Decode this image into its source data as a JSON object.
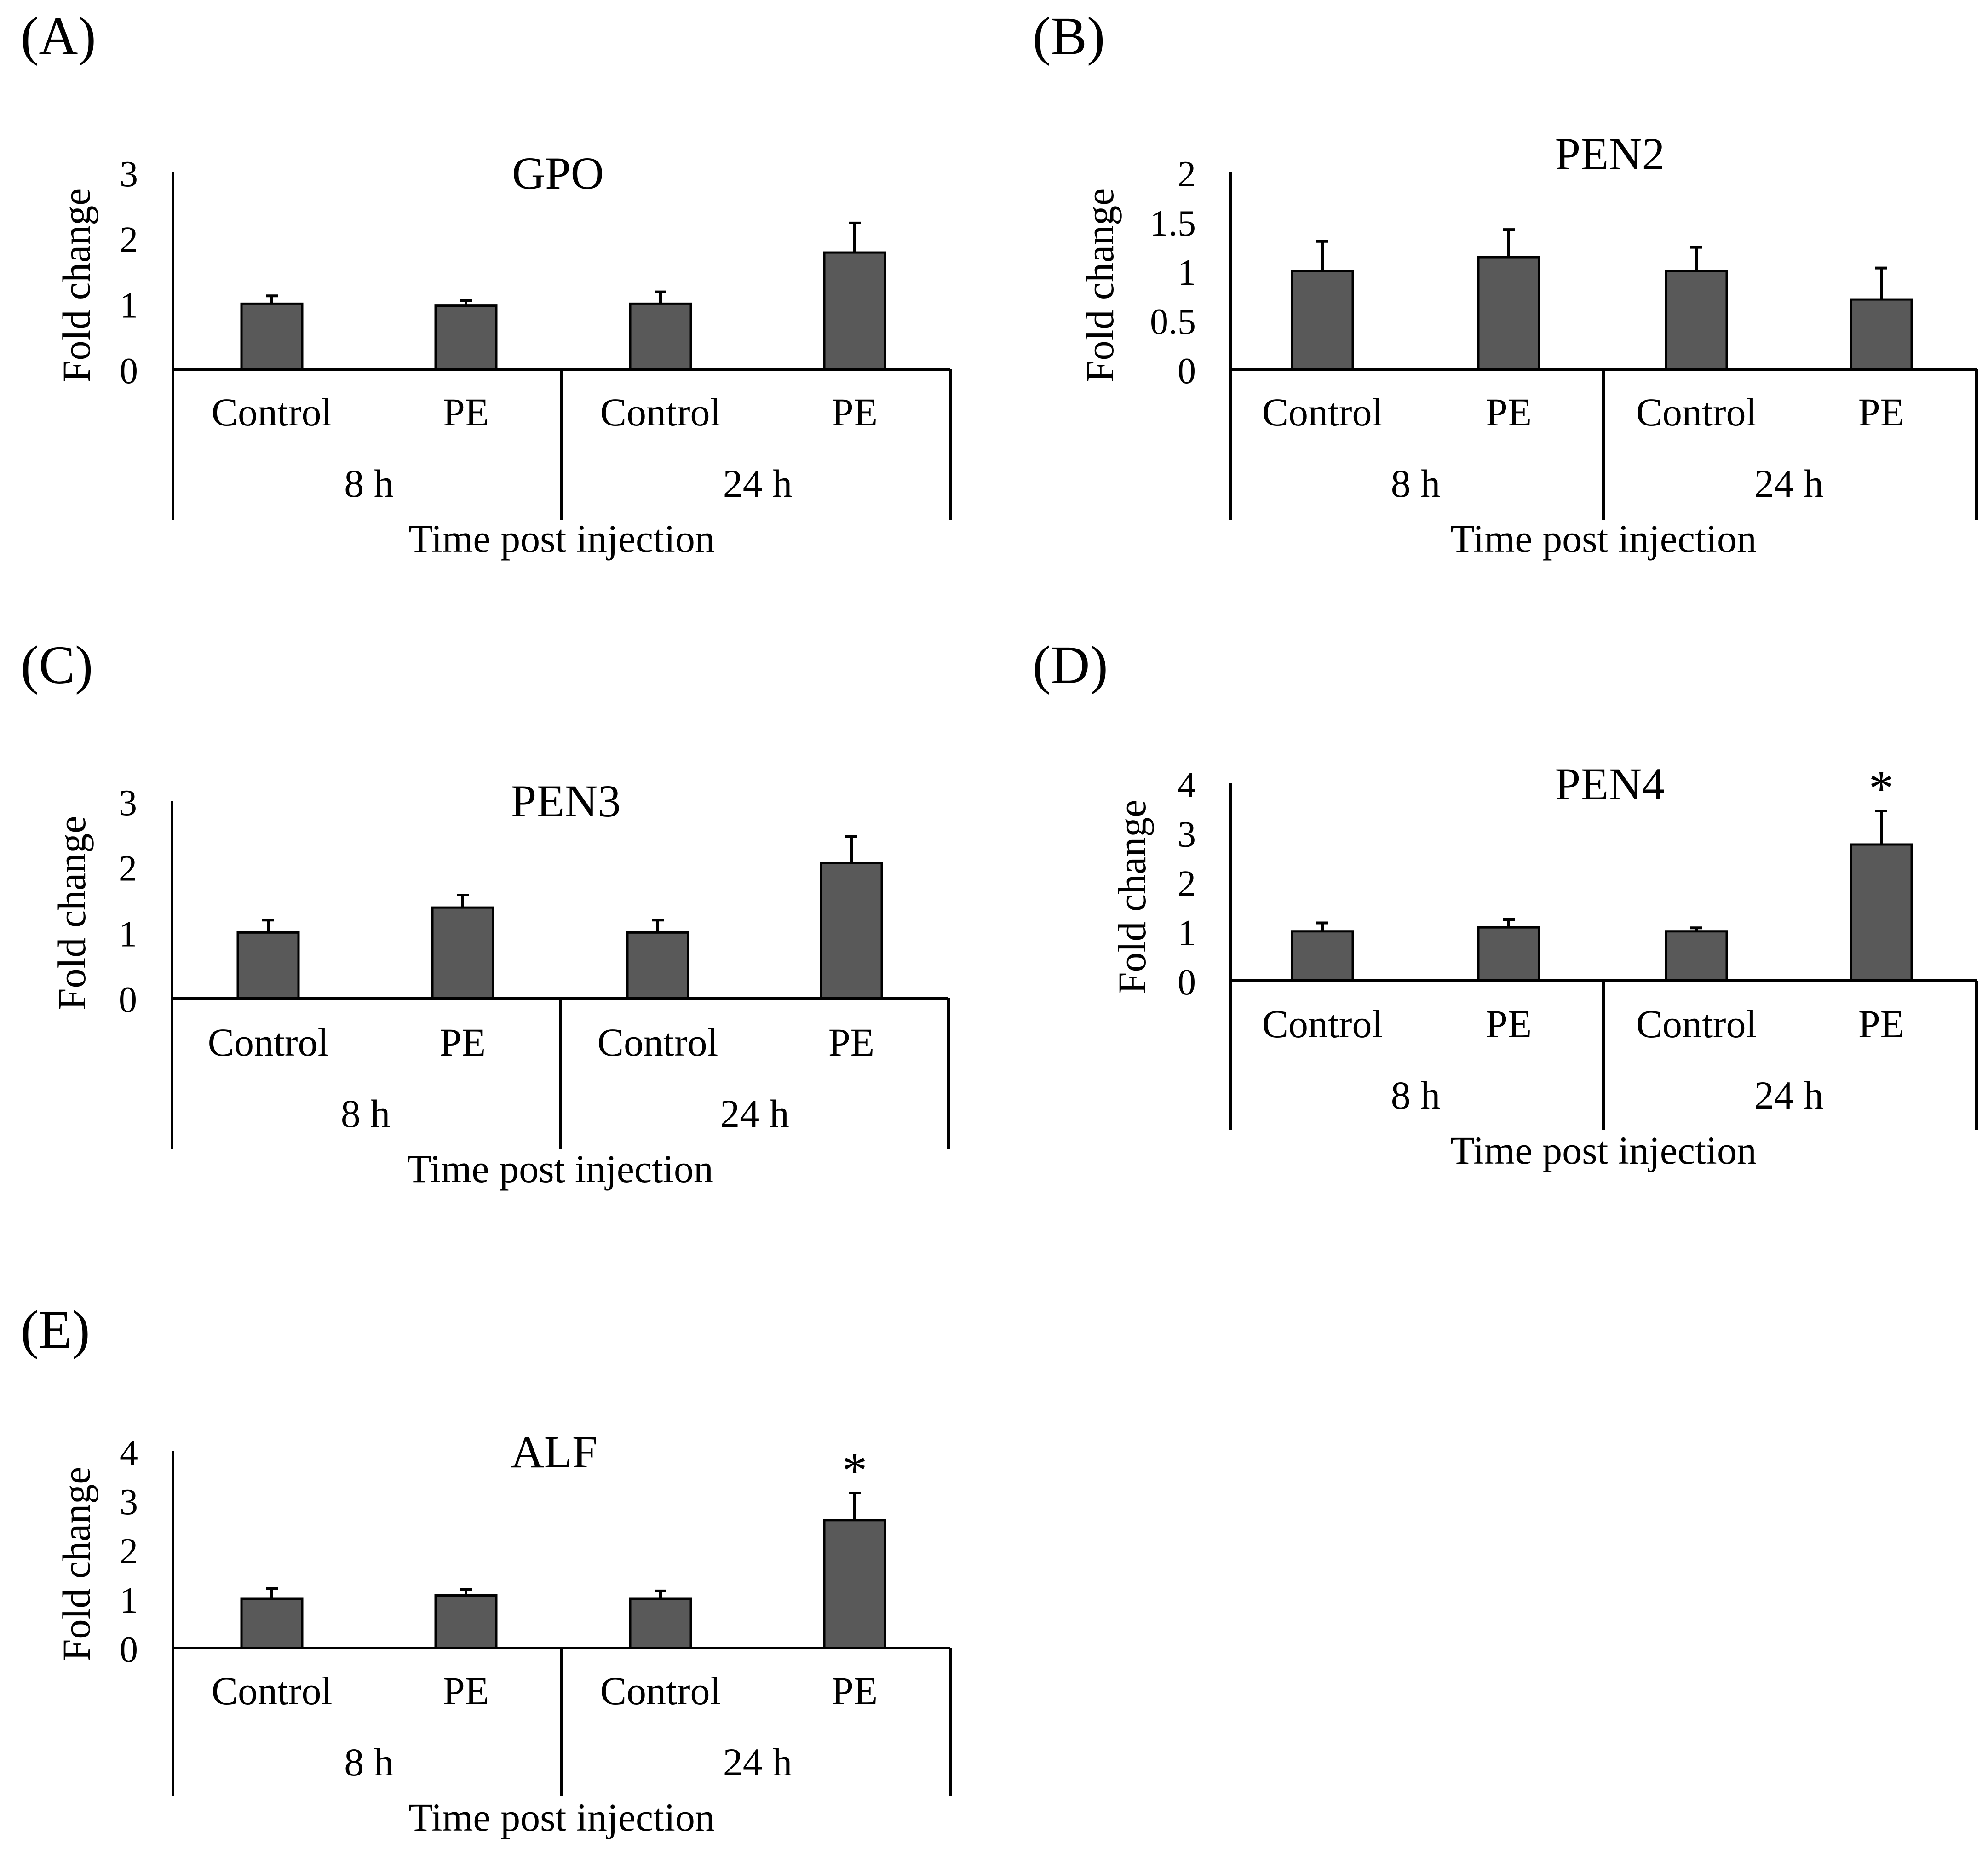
{
  "figure": {
    "bar_color": "#595959",
    "axis_color": "#000000"
  },
  "chart_data": [
    {
      "panel_label": "(A)",
      "type": "bar",
      "title": "GPO",
      "ylabel": "Fold change",
      "xlabel": "Time post injection",
      "ylim": [
        0,
        3
      ],
      "y_ticks": [
        "0",
        "1",
        "2",
        "3"
      ],
      "y_tick_values": [
        0,
        1,
        2,
        3
      ],
      "categories": [
        "Control",
        "PE",
        "Control",
        "PE"
      ],
      "groups": [
        "8 h",
        "24 h"
      ],
      "values": [
        1.0,
        0.97,
        1.0,
        1.78
      ],
      "errors": [
        0.12,
        0.08,
        0.18,
        0.45
      ],
      "significance": [
        "",
        "",
        "",
        ""
      ]
    },
    {
      "panel_label": "(B)",
      "type": "bar",
      "title": "PEN2",
      "ylabel": "Fold change",
      "xlabel": "Time post injection",
      "ylim": [
        0,
        2
      ],
      "y_ticks": [
        "0",
        "0.5",
        "1",
        "1.5",
        "2"
      ],
      "y_tick_values": [
        0,
        0.5,
        1,
        1.5,
        2
      ],
      "categories": [
        "Control",
        "PE",
        "Control",
        "PE"
      ],
      "groups": [
        "8 h",
        "24 h"
      ],
      "values": [
        1.0,
        1.14,
        1.0,
        0.71
      ],
      "errors": [
        0.3,
        0.28,
        0.24,
        0.32
      ],
      "significance": [
        "",
        "",
        "",
        ""
      ]
    },
    {
      "panel_label": "(C)",
      "type": "bar",
      "title": "PEN3",
      "ylabel": "Fold change",
      "xlabel": "Time post injection",
      "ylim": [
        0,
        3
      ],
      "y_ticks": [
        "0",
        "1",
        "2",
        "3"
      ],
      "y_tick_values": [
        0,
        1,
        2,
        3
      ],
      "categories": [
        "Control",
        "PE",
        "Control",
        "PE"
      ],
      "groups": [
        "8 h",
        "24 h"
      ],
      "values": [
        1.0,
        1.38,
        1.0,
        2.06
      ],
      "errors": [
        0.19,
        0.19,
        0.19,
        0.4
      ],
      "significance": [
        "",
        "",
        "",
        ""
      ]
    },
    {
      "panel_label": "(D)",
      "type": "bar",
      "title": "PEN4",
      "ylabel": "Fold change",
      "xlabel": "Time post injection",
      "ylim": [
        0,
        4
      ],
      "y_ticks": [
        "0",
        "1",
        "2",
        "3",
        "4"
      ],
      "y_tick_values": [
        0,
        1,
        2,
        3,
        4
      ],
      "categories": [
        "Control",
        "PE",
        "Control",
        "PE"
      ],
      "groups": [
        "8 h",
        "24 h"
      ],
      "values": [
        1.0,
        1.08,
        1.0,
        2.76
      ],
      "errors": [
        0.17,
        0.16,
        0.07,
        0.68
      ],
      "significance": [
        "",
        "",
        "",
        "*"
      ]
    },
    {
      "panel_label": "(E)",
      "type": "bar",
      "title": "ALF",
      "ylabel": "Fold change",
      "xlabel": "Time post injection",
      "ylim": [
        0,
        4
      ],
      "y_ticks": [
        "0",
        "1",
        "2",
        "3",
        "4"
      ],
      "y_tick_values": [
        0,
        1,
        2,
        3,
        4
      ],
      "categories": [
        "Control",
        "PE",
        "Control",
        "PE"
      ],
      "groups": [
        "8 h",
        "24 h"
      ],
      "values": [
        1.0,
        1.07,
        1.0,
        2.6
      ],
      "errors": [
        0.21,
        0.12,
        0.16,
        0.55
      ],
      "significance": [
        "",
        "",
        "",
        "*"
      ]
    }
  ]
}
